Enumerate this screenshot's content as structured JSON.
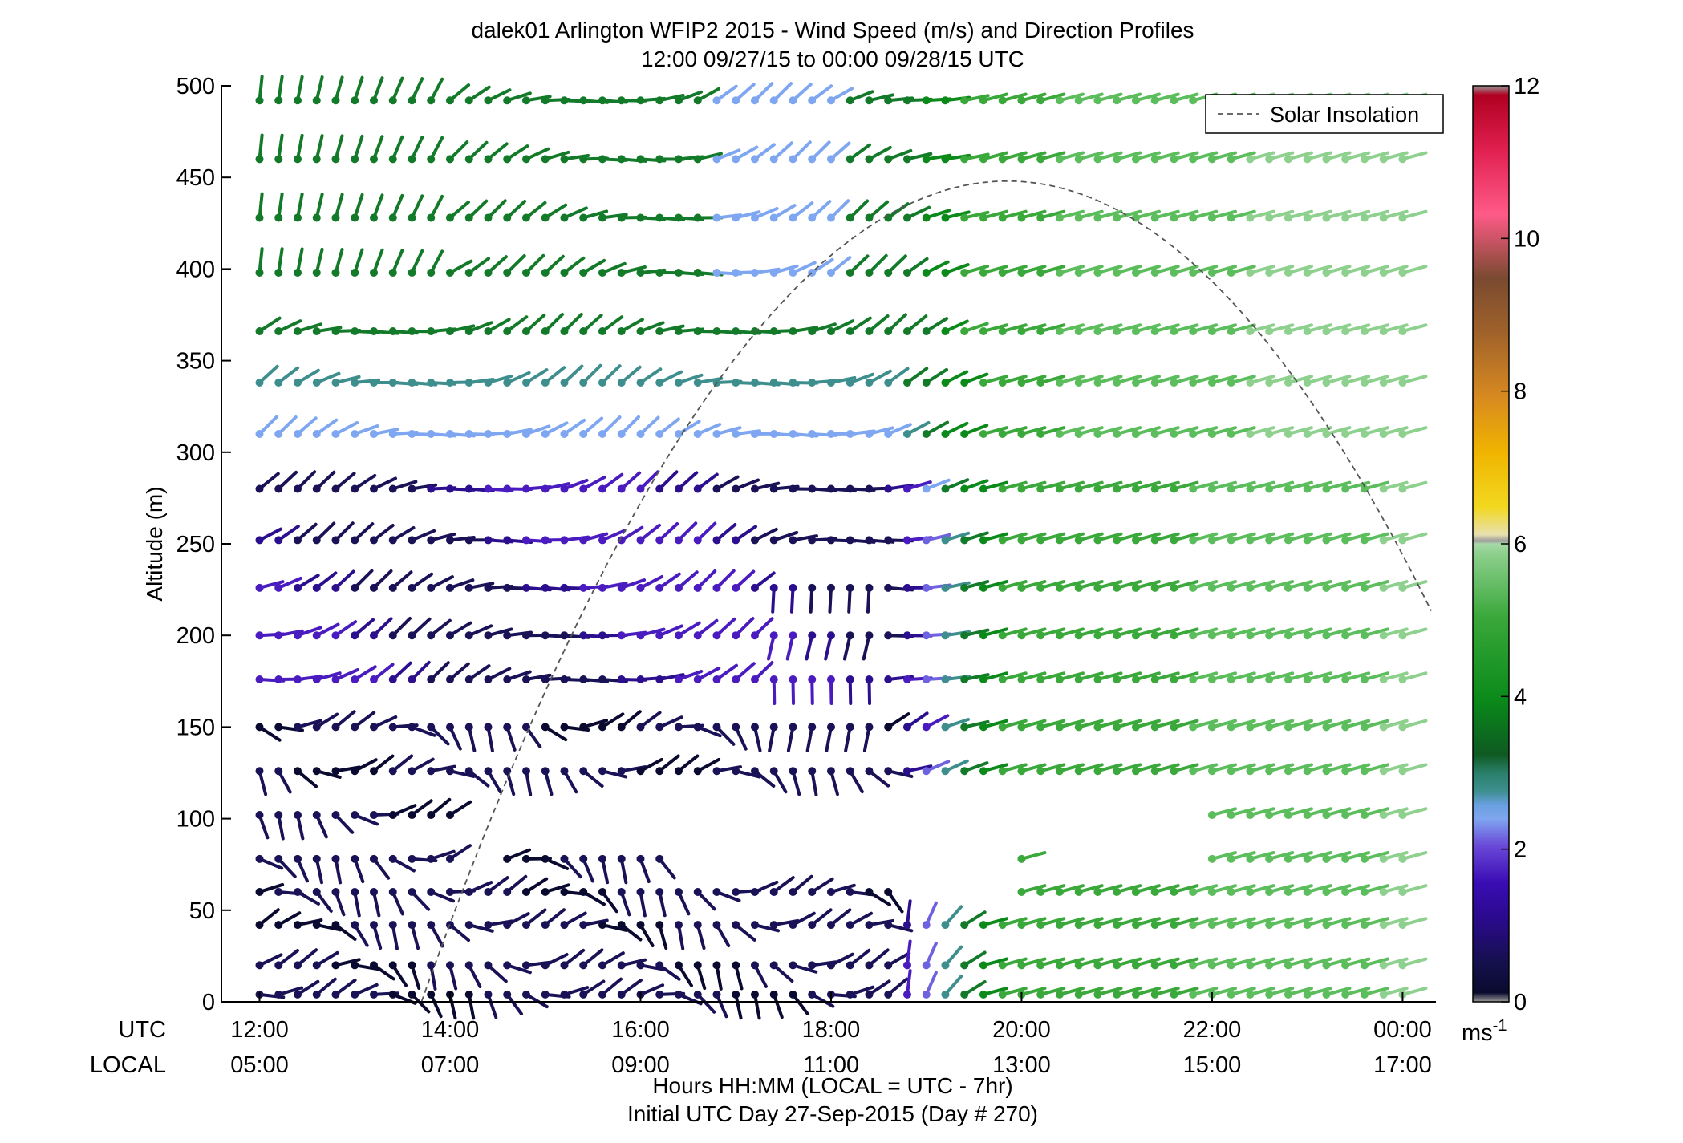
{
  "chart_data": {
    "type": "wind-barb-profile",
    "title": "dalek01 Arlington WFIP2 2015 - Wind Speed (m/s) and Direction Profiles",
    "subtitle": "12:00 09/27/15 to 00:00 09/28/15  UTC",
    "ylabel": "Altitude (m)",
    "ylim": [
      0,
      500
    ],
    "yticks": [
      "0",
      "50",
      "100",
      "150",
      "200",
      "250",
      "300",
      "350",
      "400",
      "450",
      "500"
    ],
    "xlim_hours_utc": [
      11.6,
      24.35
    ],
    "utc_row_label": "UTC",
    "local_row_label": "LOCAL",
    "utc_ticks": [
      "12:00",
      "14:00",
      "16:00",
      "18:00",
      "20:00",
      "22:00",
      "00:00"
    ],
    "local_ticks": [
      "05:00",
      "07:00",
      "09:00",
      "11:00",
      "13:00",
      "15:00",
      "17:00"
    ],
    "xlabel": "Hours HH:MM  (LOCAL = UTC - 7hr)",
    "xlabel2": "Initial UTC Day 27-Sep-2015 (Day # 270)",
    "legend": {
      "entry": "Solar Insolation",
      "style": "dashed",
      "placement": "top-right"
    },
    "colorbar": {
      "min": 0,
      "max": 12,
      "ticks": [
        "0",
        "2",
        "4",
        "6",
        "8",
        "10",
        "12"
      ],
      "unit": "ms",
      "unit_exp": "-1"
    },
    "barb_times_utc": {
      "start": 12.0,
      "step": 0.2,
      "count": 61
    },
    "altitudes_m": [
      4,
      20,
      42,
      60,
      78,
      102,
      126,
      150,
      176,
      200,
      226,
      252,
      280,
      310,
      338,
      366,
      398,
      428,
      460,
      492
    ],
    "solar_insolation_curve": {
      "description_peak_altitude_axis_units": 448,
      "peak_time_utc": 19.85,
      "start_time_utc": 13.7,
      "end_time_utc": 24.5
    },
    "barb_pattern_summary": [
      "Morning (12:00-19:00 UTC): weak winds 0.5-2.5 m/s (dark navy to purple to light blue) below ~350 m; green 3-4 m/s above ~350 m",
      "Afternoon (19:00-24:00 UTC): 4-5 m/s green winds through the column, lightening to pale green 5-6 m/s toward 00:00",
      "Data gap near 100 m and near-surface between ~14:30 and ~22:00 UTC"
    ]
  }
}
